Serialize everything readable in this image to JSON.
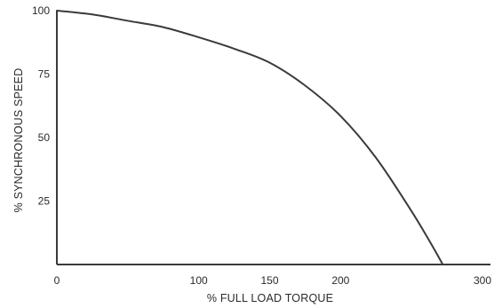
{
  "chart_data": {
    "type": "line",
    "title": "",
    "xlabel": "% FULL LOAD TORQUE",
    "ylabel": "% SYNCHRONOUS SPEED",
    "xlim": [
      0,
      300
    ],
    "ylim": [
      0,
      100
    ],
    "x_ticks": [
      0,
      100,
      150,
      200,
      300
    ],
    "x_tick_labels": [
      "0",
      "100",
      "150",
      "200",
      "300"
    ],
    "y_ticks": [
      25,
      50,
      75,
      100
    ],
    "y_tick_labels": [
      "25",
      "50",
      "75",
      "100"
    ],
    "grid": false,
    "series": [
      {
        "x": [
          0,
          25,
          50,
          75,
          100,
          125,
          150,
          175,
          200,
          225,
          250,
          265,
          272
        ],
        "y": [
          100,
          98.5,
          96,
          93.5,
          89.5,
          85,
          79.5,
          70.5,
          58.5,
          42,
          21,
          7,
          0
        ]
      }
    ],
    "colors": {
      "line": "#3a3a3a",
      "axis": "#3a3a3a",
      "text": "#2a2a2a"
    }
  }
}
